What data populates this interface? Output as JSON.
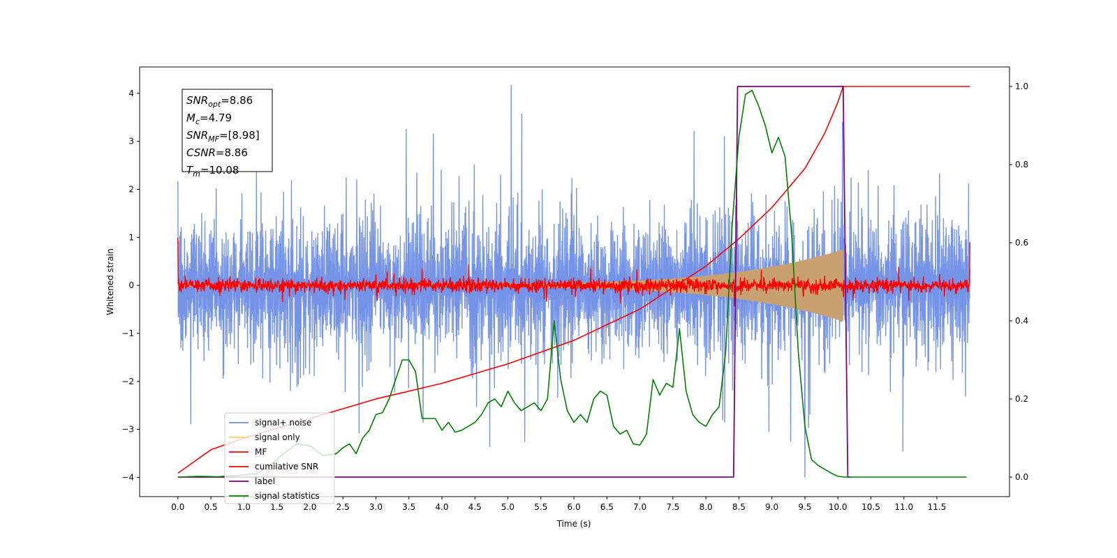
{
  "chart_data": {
    "type": "line",
    "xlabel": "Time (s)",
    "ylabel": "Whitened strain",
    "xlim": [
      -0.58,
      12.6
    ],
    "ylim": [
      -4.4,
      4.55
    ],
    "ylim_right": [
      -0.05,
      1.05
    ],
    "x_ticks": [
      "0.0",
      "0.5",
      "1.0",
      "1.5",
      "2.0",
      "2.5",
      "3.0",
      "3.5",
      "4.0",
      "4.5",
      "5.0",
      "5.5",
      "6.0",
      "6.5",
      "7.0",
      "7.5",
      "8.0",
      "8.5",
      "9.0",
      "9.5",
      "10.0",
      "10.5",
      "11.0",
      "11.5"
    ],
    "y_ticks_left": [
      "−4",
      "−3",
      "−2",
      "−1",
      "0",
      "1",
      "2",
      "3",
      "4"
    ],
    "y_ticks_right": [
      "0.0",
      "0.2",
      "0.4",
      "0.6",
      "0.8",
      "1.0"
    ],
    "legend": {
      "placement": "lower-left",
      "entries": [
        {
          "label": "signal+ noise",
          "color": "#6f8ee6"
        },
        {
          "label": "signal only",
          "color": "#ffcc66"
        },
        {
          "label": "MF",
          "color": "#ff0000"
        },
        {
          "label": "cumilative SNR",
          "color": "#ff0000"
        },
        {
          "label": "label",
          "color": "#800080"
        },
        {
          "label": "signal statistics",
          "color": "#008000"
        }
      ]
    },
    "annotation": {
      "lines": [
        {
          "sym": "SNR",
          "sub": "opt",
          "value": "=8.86"
        },
        {
          "sym": "M",
          "sub": "c",
          "value": "=4.79"
        },
        {
          "sym": "SNR",
          "sub": "MF",
          "value": "=[8.98]"
        },
        {
          "sym": "CSNR",
          "sub": "",
          "value": "=8.86"
        },
        {
          "sym": "T",
          "sub": "m",
          "value": "=10.08"
        }
      ]
    },
    "series": [
      {
        "name": "signal+ noise",
        "axis": "left",
        "color": "#6f8ee6",
        "x_range": [
          0.0,
          12.0
        ],
        "noise_envelope": [
          -2.2,
          2.2
        ],
        "max_peak": 4.17,
        "min_peak": -4.0
      },
      {
        "name": "signal only",
        "axis": "left",
        "color": "#ffcc66",
        "chirp_start": 0.0,
        "chirp_end": 10.08,
        "amplitude_start": 0.02,
        "amplitude_end": 0.75
      },
      {
        "name": "MF",
        "axis": "left",
        "color": "#ff0000",
        "x_range": [
          0.0,
          12.0
        ],
        "noise_envelope": [
          -0.2,
          0.2
        ]
      },
      {
        "name": "cumilative SNR",
        "axis": "right",
        "color": "#ff0000",
        "x": [
          0.0,
          0.5,
          1.0,
          2.0,
          3.0,
          4.0,
          5.0,
          6.0,
          7.0,
          8.0,
          8.5,
          9.0,
          9.5,
          9.8,
          10.0,
          10.08,
          12.0
        ],
        "y": [
          0.01,
          0.07,
          0.1,
          0.15,
          0.2,
          0.24,
          0.29,
          0.35,
          0.43,
          0.54,
          0.61,
          0.69,
          0.79,
          0.88,
          0.96,
          1.0,
          1.0
        ]
      },
      {
        "name": "label",
        "axis": "right",
        "color": "#800080",
        "x": [
          0.0,
          8.42,
          8.48,
          10.08,
          10.15,
          10.2
        ],
        "y": [
          0.0,
          0.0,
          1.0,
          1.0,
          0.0,
          0.0
        ]
      },
      {
        "name": "signal statistics",
        "axis": "right",
        "color": "#008000",
        "x": [
          0.0,
          0.3,
          0.6,
          0.9,
          1.2,
          1.4,
          1.6,
          1.8,
          2.0,
          2.2,
          2.4,
          2.5,
          2.6,
          2.7,
          2.8,
          2.9,
          3.0,
          3.1,
          3.2,
          3.3,
          3.4,
          3.5,
          3.6,
          3.7,
          3.8,
          3.9,
          4.0,
          4.1,
          4.2,
          4.3,
          4.4,
          4.5,
          4.6,
          4.7,
          4.8,
          4.9,
          5.0,
          5.1,
          5.2,
          5.3,
          5.4,
          5.5,
          5.6,
          5.7,
          5.8,
          5.9,
          6.0,
          6.1,
          6.2,
          6.3,
          6.4,
          6.5,
          6.6,
          6.7,
          6.8,
          6.9,
          7.0,
          7.1,
          7.2,
          7.3,
          7.4,
          7.5,
          7.6,
          7.7,
          7.8,
          7.9,
          8.0,
          8.1,
          8.2,
          8.3,
          8.4,
          8.5,
          8.6,
          8.7,
          8.8,
          8.9,
          9.0,
          9.1,
          9.2,
          9.3,
          9.4,
          9.5,
          9.6,
          9.7,
          9.8,
          9.9,
          10.0,
          10.1,
          10.3,
          10.6,
          11.0,
          11.5,
          11.95
        ],
        "y": [
          0.0,
          0.002,
          0.001,
          0.004,
          0.009,
          0.03,
          0.06,
          0.085,
          0.08,
          0.055,
          0.06,
          0.075,
          0.085,
          0.06,
          0.1,
          0.12,
          0.16,
          0.165,
          0.2,
          0.25,
          0.3,
          0.3,
          0.27,
          0.15,
          0.15,
          0.15,
          0.12,
          0.14,
          0.115,
          0.12,
          0.13,
          0.14,
          0.16,
          0.19,
          0.2,
          0.18,
          0.22,
          0.19,
          0.17,
          0.18,
          0.19,
          0.17,
          0.2,
          0.4,
          0.25,
          0.17,
          0.14,
          0.16,
          0.14,
          0.2,
          0.22,
          0.21,
          0.13,
          0.11,
          0.12,
          0.085,
          0.082,
          0.11,
          0.25,
          0.21,
          0.24,
          0.23,
          0.38,
          0.22,
          0.16,
          0.14,
          0.13,
          0.16,
          0.18,
          0.32,
          0.65,
          0.87,
          0.98,
          0.99,
          0.95,
          0.9,
          0.83,
          0.87,
          0.82,
          0.62,
          0.32,
          0.13,
          0.045,
          0.03,
          0.02,
          0.01,
          0.002,
          0.0,
          0.0,
          0.0,
          0.0,
          0.0,
          0.0
        ]
      }
    ]
  }
}
